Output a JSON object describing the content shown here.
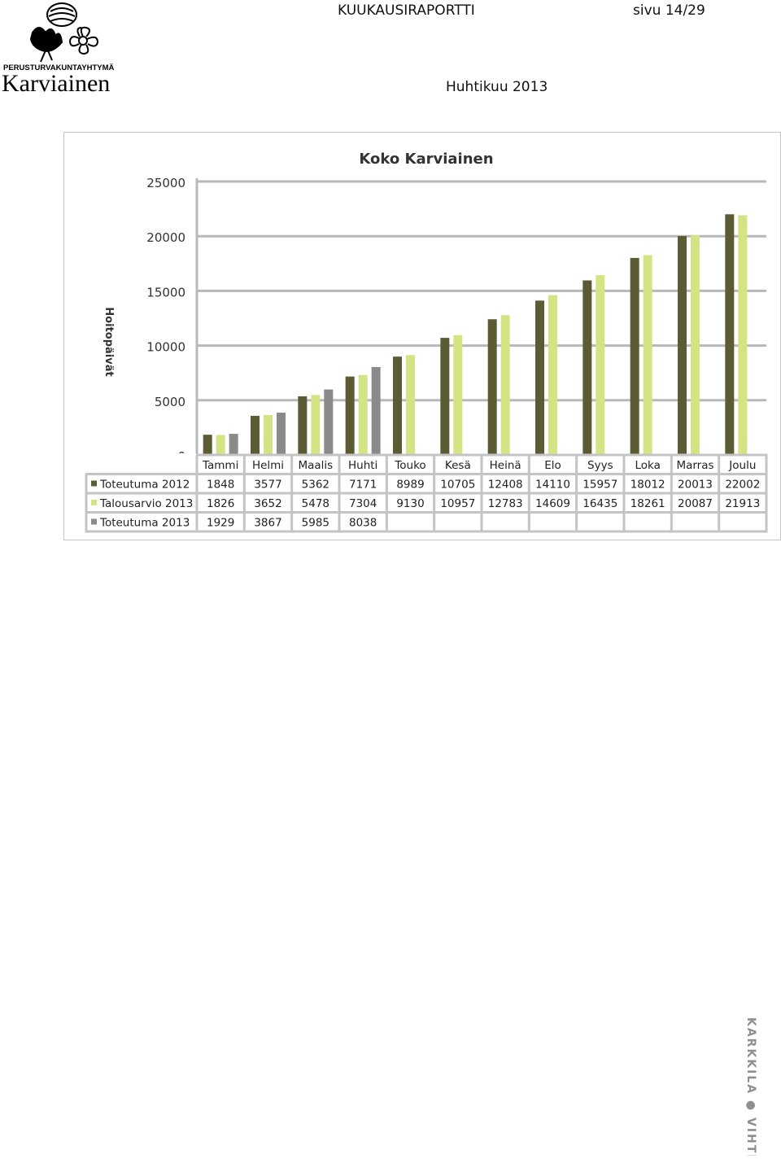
{
  "header": {
    "org_name": "PERUSTURVAKUNTAYHTYMÄ",
    "org_logo_text": "Karviainen",
    "report_title": "KUUKAUSIRAPORTTI",
    "page_label": "sivu 14/29",
    "period": "Huhtikuu 2013"
  },
  "footer": {
    "side_text": "KARKKILA ● VIHTI"
  },
  "colors": {
    "s1": "#5b5b34",
    "s2": "#d4e383",
    "s3": "#8a8a8a",
    "grid": "#b8b8b8",
    "border": "#c4c4c4"
  },
  "chart_data": {
    "type": "bar",
    "title": "Koko Karviainen",
    "ylabel": "Hoitopäivät",
    "ylim": [
      0,
      25000
    ],
    "yticks": [
      0,
      5000,
      10000,
      15000,
      20000,
      25000
    ],
    "grid": true,
    "legend": "table-left",
    "categories": [
      "Tammi",
      "Helmi",
      "Maalis",
      "Huhti",
      "Touko",
      "Kesä",
      "Heinä",
      "Elo",
      "Syys",
      "Loka",
      "Marras",
      "Joulu"
    ],
    "series": [
      {
        "name": "Toteutuma 2012",
        "values": [
          1848,
          3577,
          5362,
          7171,
          8989,
          10705,
          12408,
          14110,
          15957,
          18012,
          20013,
          22002
        ]
      },
      {
        "name": "Talousarvio 2013",
        "values": [
          1826,
          3652,
          5478,
          7304,
          9130,
          10957,
          12783,
          14609,
          16435,
          18261,
          20087,
          21913
        ]
      },
      {
        "name": "Toteutuma 2013",
        "values": [
          1929,
          3867,
          5985,
          8038,
          null,
          null,
          null,
          null,
          null,
          null,
          null,
          null
        ]
      }
    ]
  }
}
